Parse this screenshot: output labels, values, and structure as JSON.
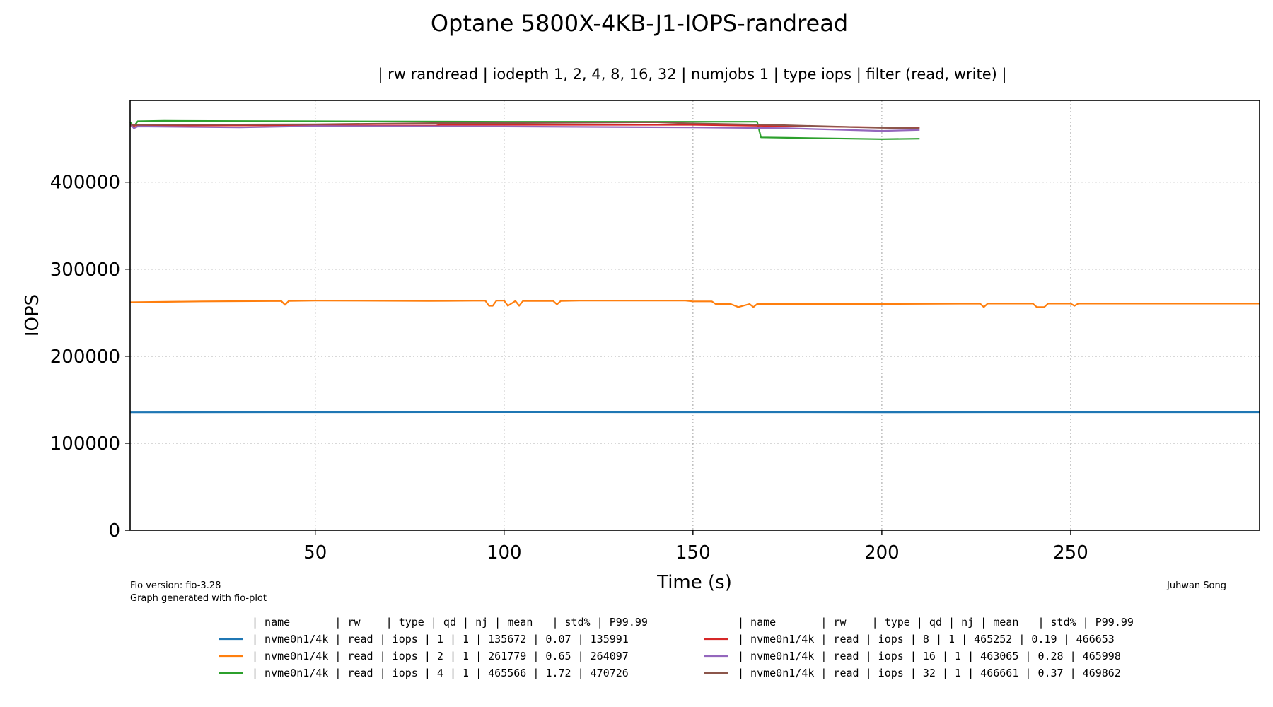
{
  "chart_data": {
    "type": "line",
    "title": "Optane 5800X-4KB-J1-IOPS-randread",
    "subtitle": "| rw randread | iodepth 1, 2, 4, 8, 16, 32 | numjobs 1 | type iops | filter (read, write) |",
    "xlabel": "Time (s)",
    "ylabel": "IOPS",
    "xlim": [
      1,
      300
    ],
    "ylim": [
      0,
      494000
    ],
    "xticks": [
      50,
      100,
      150,
      200,
      250
    ],
    "yticks": [
      0,
      100000,
      200000,
      300000,
      400000
    ],
    "grid": true,
    "series": [
      {
        "name": "nvme0n1/4k | read | iops | qd 1",
        "color": "#1f77b4",
        "x": [
          1,
          50,
          100,
          150,
          200,
          250,
          300
        ],
        "y": [
          135500,
          135700,
          135800,
          135700,
          135600,
          135700,
          135700
        ]
      },
      {
        "name": "nvme0n1/4k | read | iops | qd 2",
        "color": "#ff7f0e",
        "x": [
          1,
          20,
          41,
          42,
          43,
          50,
          80,
          95,
          96,
          97,
          98,
          99,
          100,
          101,
          103,
          104,
          105,
          108,
          113,
          114,
          115,
          120,
          148,
          150,
          155,
          156,
          160,
          162,
          165,
          166,
          167,
          168,
          170,
          200,
          226,
          227,
          228,
          240,
          241,
          243,
          244,
          250,
          251,
          252,
          300
        ],
        "y": [
          262000,
          263000,
          263500,
          259000,
          263500,
          264000,
          263500,
          264000,
          258000,
          258000,
          264000,
          264000,
          264000,
          258000,
          263500,
          258000,
          263500,
          263500,
          263500,
          259500,
          263500,
          264000,
          264000,
          263000,
          263000,
          260000,
          260000,
          256500,
          260000,
          256500,
          260000,
          260000,
          260000,
          260000,
          260500,
          256500,
          260500,
          260500,
          256500,
          256500,
          260500,
          260500,
          258000,
          260500,
          260500
        ]
      },
      {
        "name": "nvme0n1/4k | read | iops | qd 4",
        "color": "#2ca02c",
        "x": [
          1,
          2,
          3,
          10,
          50,
          100,
          150,
          167,
          168,
          175,
          200,
          210
        ],
        "y": [
          469000,
          464000,
          470000,
          470500,
          470000,
          469500,
          469500,
          469500,
          451500,
          451000,
          449500,
          450000
        ]
      },
      {
        "name": "nvme0n1/4k | read | iops | qd 8",
        "color": "#d62728",
        "x": [
          1,
          50,
          82,
          83,
          100,
          150,
          200,
          210
        ],
        "y": [
          465000,
          465500,
          465000,
          466000,
          466000,
          466000,
          463000,
          463000
        ]
      },
      {
        "name": "nvme0n1/4k | read | iops | qd 16",
        "color": "#9467bd",
        "x": [
          1,
          2,
          3,
          30,
          50,
          100,
          150,
          175,
          200,
          210
        ],
        "y": [
          467000,
          462000,
          464000,
          463000,
          464500,
          464000,
          463000,
          462000,
          459000,
          460000
        ]
      },
      {
        "name": "nvme0n1/4k | read | iops | qd 32",
        "color": "#8c564b",
        "x": [
          1,
          50,
          83,
          100,
          140,
          150,
          170,
          200,
          210
        ],
        "y": [
          466000,
          466500,
          468000,
          468000,
          469000,
          467500,
          466000,
          462500,
          462000
        ]
      }
    ]
  },
  "footer": {
    "version": "Fio version: fio-3.28",
    "generated": "Graph generated with fio-plot",
    "author": "Juhwan Song"
  },
  "legend": {
    "header": "| name       | rw    | type | qd | nj | mean   | std% | P99.99",
    "left_rows": [
      {
        "color": "#1f77b4",
        "text": "| nvme0n1/4k |  read | iops |  1 |  1 | 135672 | 0.07 | 135991"
      },
      {
        "color": "#ff7f0e",
        "text": "| nvme0n1/4k |  read | iops |  2 |  1 | 261779 | 0.65 | 264097"
      },
      {
        "color": "#2ca02c",
        "text": "| nvme0n1/4k |  read | iops |  4 |  1 | 465566 | 1.72 | 470726"
      }
    ],
    "right_rows": [
      {
        "color": "#d62728",
        "text": "| nvme0n1/4k |  read | iops |  8 |  1 | 465252 | 0.19 | 466653"
      },
      {
        "color": "#9467bd",
        "text": "| nvme0n1/4k |  read | iops | 16 |  1 | 463065 | 0.28 | 465998"
      },
      {
        "color": "#8c564b",
        "text": "| nvme0n1/4k |  read | iops | 32 |  1 | 466661 | 0.37 | 469862"
      }
    ]
  }
}
